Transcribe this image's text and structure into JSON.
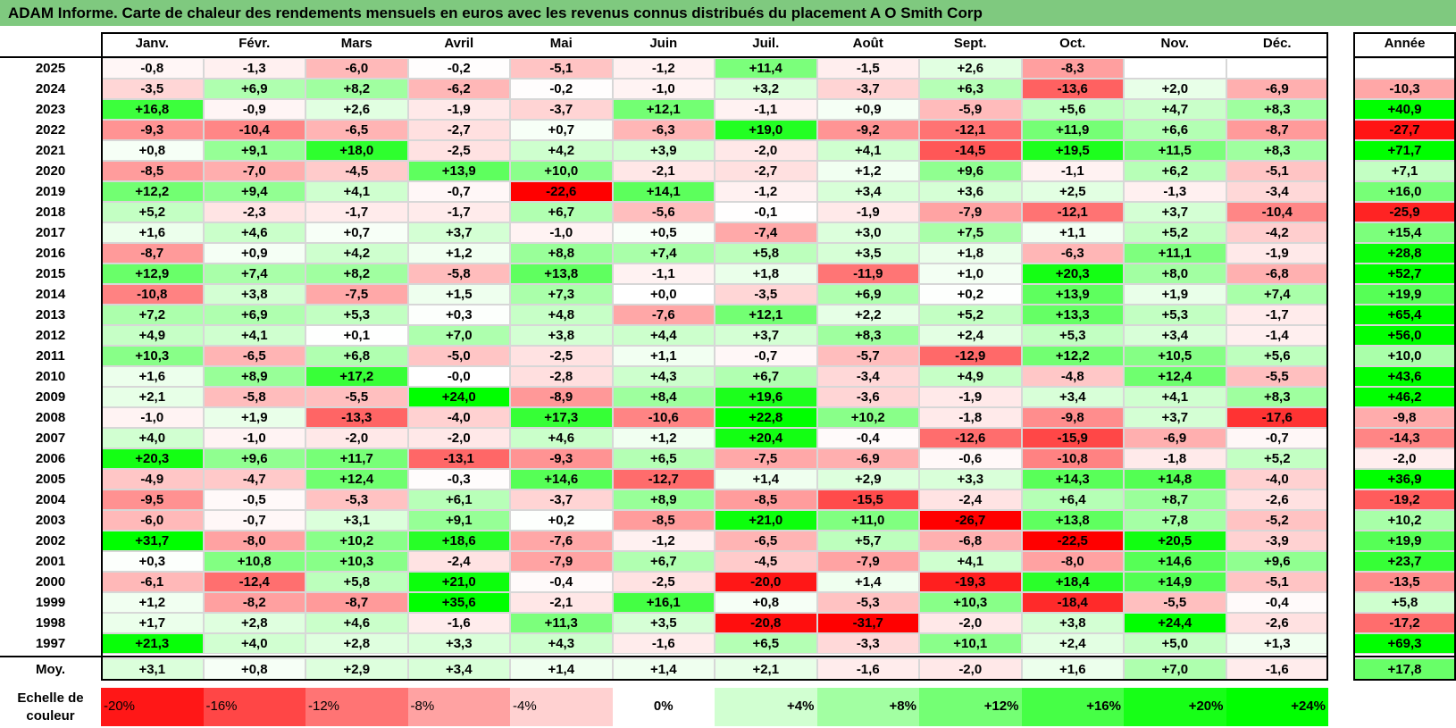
{
  "title": "ADAM Informe. Carte de chaleur des rendements mensuels en euros avec les revenus connus distribués du placement A O Smith Corp",
  "chart_data": {
    "type": "heatmap",
    "months": [
      "Janv.",
      "Févr.",
      "Mars",
      "Avril",
      "Mai",
      "Juin",
      "Juil.",
      "Août",
      "Sept.",
      "Oct.",
      "Nov.",
      "Déc."
    ],
    "year_header": "Année",
    "avg_label": "Moy.",
    "rows": [
      {
        "year": "2025",
        "values": [
          "-0,8",
          "-1,3",
          "-6,0",
          "-0,2",
          "-5,1",
          "-1,2",
          "+11,4",
          "-1,5",
          "+2,6",
          "-8,3",
          "",
          ""
        ],
        "annual": ""
      },
      {
        "year": "2024",
        "values": [
          "-3,5",
          "+6,9",
          "+8,2",
          "-6,2",
          "-0,2",
          "-1,0",
          "+3,2",
          "-3,7",
          "+6,3",
          "-13,6",
          "+2,0",
          "-6,9"
        ],
        "annual": "-10,3"
      },
      {
        "year": "2023",
        "values": [
          "+16,8",
          "-0,9",
          "+2,6",
          "-1,9",
          "-3,7",
          "+12,1",
          "-1,1",
          "+0,9",
          "-5,9",
          "+5,6",
          "+4,7",
          "+8,3"
        ],
        "annual": "+40,9"
      },
      {
        "year": "2022",
        "values": [
          "-9,3",
          "-10,4",
          "-6,5",
          "-2,7",
          "+0,7",
          "-6,3",
          "+19,0",
          "-9,2",
          "-12,1",
          "+11,9",
          "+6,6",
          "-8,7"
        ],
        "annual": "-27,7"
      },
      {
        "year": "2021",
        "values": [
          "+0,8",
          "+9,1",
          "+18,0",
          "-2,5",
          "+4,2",
          "+3,9",
          "-2,0",
          "+4,1",
          "-14,5",
          "+19,5",
          "+11,5",
          "+8,3"
        ],
        "annual": "+71,7"
      },
      {
        "year": "2020",
        "values": [
          "-8,5",
          "-7,0",
          "-4,5",
          "+13,9",
          "+10,0",
          "-2,1",
          "-2,7",
          "+1,2",
          "+9,6",
          "-1,1",
          "+6,2",
          "-5,1"
        ],
        "annual": "+7,1"
      },
      {
        "year": "2019",
        "values": [
          "+12,2",
          "+9,4",
          "+4,1",
          "-0,7",
          "-22,6",
          "+14,1",
          "-1,2",
          "+3,4",
          "+3,6",
          "+2,5",
          "-1,3",
          "-3,4"
        ],
        "annual": "+16,0"
      },
      {
        "year": "2018",
        "values": [
          "+5,2",
          "-2,3",
          "-1,7",
          "-1,7",
          "+6,7",
          "-5,6",
          "-0,1",
          "-1,9",
          "-7,9",
          "-12,1",
          "+3,7",
          "-10,4"
        ],
        "annual": "-25,9"
      },
      {
        "year": "2017",
        "values": [
          "+1,6",
          "+4,6",
          "+0,7",
          "+3,7",
          "-1,0",
          "+0,5",
          "-7,4",
          "+3,0",
          "+7,5",
          "+1,1",
          "+5,2",
          "-4,2"
        ],
        "annual": "+15,4"
      },
      {
        "year": "2016",
        "values": [
          "-8,7",
          "+0,9",
          "+4,2",
          "+1,2",
          "+8,8",
          "+7,4",
          "+5,8",
          "+3,5",
          "+1,8",
          "-6,3",
          "+11,1",
          "-1,9"
        ],
        "annual": "+28,8"
      },
      {
        "year": "2015",
        "values": [
          "+12,9",
          "+7,4",
          "+8,2",
          "-5,8",
          "+13,8",
          "-1,1",
          "+1,8",
          "-11,9",
          "+1,0",
          "+20,3",
          "+8,0",
          "-6,8"
        ],
        "annual": "+52,7"
      },
      {
        "year": "2014",
        "values": [
          "-10,8",
          "+3,8",
          "-7,5",
          "+1,5",
          "+7,3",
          "+0,0",
          "-3,5",
          "+6,9",
          "+0,2",
          "+13,9",
          "+1,9",
          "+7,4"
        ],
        "annual": "+19,9"
      },
      {
        "year": "2013",
        "values": [
          "+7,2",
          "+6,9",
          "+5,3",
          "+0,3",
          "+4,8",
          "-7,6",
          "+12,1",
          "+2,2",
          "+5,2",
          "+13,3",
          "+5,3",
          "-1,7"
        ],
        "annual": "+65,4"
      },
      {
        "year": "2012",
        "values": [
          "+4,9",
          "+4,1",
          "+0,1",
          "+7,0",
          "+3,8",
          "+4,4",
          "+3,7",
          "+8,3",
          "+2,4",
          "+5,3",
          "+3,4",
          "-1,4"
        ],
        "annual": "+56,0"
      },
      {
        "year": "2011",
        "values": [
          "+10,3",
          "-6,5",
          "+6,8",
          "-5,0",
          "-2,5",
          "+1,1",
          "-0,7",
          "-5,7",
          "-12,9",
          "+12,2",
          "+10,5",
          "+5,6"
        ],
        "annual": "+10,0"
      },
      {
        "year": "2010",
        "values": [
          "+1,6",
          "+8,9",
          "+17,2",
          "-0,0",
          "-2,8",
          "+4,3",
          "+6,7",
          "-3,4",
          "+4,9",
          "-4,8",
          "+12,4",
          "-5,5"
        ],
        "annual": "+43,6"
      },
      {
        "year": "2009",
        "values": [
          "+2,1",
          "-5,8",
          "-5,5",
          "+24,0",
          "-8,9",
          "+8,4",
          "+19,6",
          "-3,6",
          "-1,9",
          "+3,4",
          "+4,1",
          "+8,3"
        ],
        "annual": "+46,2"
      },
      {
        "year": "2008",
        "values": [
          "-1,0",
          "+1,9",
          "-13,3",
          "-4,0",
          "+17,3",
          "-10,6",
          "+22,8",
          "+10,2",
          "-1,8",
          "-9,8",
          "+3,7",
          "-17,6"
        ],
        "annual": "-9,8"
      },
      {
        "year": "2007",
        "values": [
          "+4,0",
          "-1,0",
          "-2,0",
          "-2,0",
          "+4,6",
          "+1,2",
          "+20,4",
          "-0,4",
          "-12,6",
          "-15,9",
          "-6,9",
          "-0,7"
        ],
        "annual": "-14,3"
      },
      {
        "year": "2006",
        "values": [
          "+20,3",
          "+9,6",
          "+11,7",
          "-13,1",
          "-9,3",
          "+6,5",
          "-7,5",
          "-6,9",
          "-0,6",
          "-10,8",
          "-1,8",
          "+5,2"
        ],
        "annual": "-2,0"
      },
      {
        "year": "2005",
        "values": [
          "-4,9",
          "-4,7",
          "+12,4",
          "-0,3",
          "+14,6",
          "-12,7",
          "+1,4",
          "+2,9",
          "+3,3",
          "+14,3",
          "+14,8",
          "-4,0"
        ],
        "annual": "+36,9"
      },
      {
        "year": "2004",
        "values": [
          "-9,5",
          "-0,5",
          "-5,3",
          "+6,1",
          "-3,7",
          "+8,9",
          "-8,5",
          "-15,5",
          "-2,4",
          "+6,4",
          "+8,7",
          "-2,6"
        ],
        "annual": "-19,2"
      },
      {
        "year": "2003",
        "values": [
          "-6,0",
          "-0,7",
          "+3,1",
          "+9,1",
          "+0,2",
          "-8,5",
          "+21,0",
          "+11,0",
          "-26,7",
          "+13,8",
          "+7,8",
          "-5,2"
        ],
        "annual": "+10,2"
      },
      {
        "year": "2002",
        "values": [
          "+31,7",
          "-8,0",
          "+10,2",
          "+18,6",
          "-7,6",
          "-1,2",
          "-6,5",
          "+5,7",
          "-6,8",
          "-22,5",
          "+20,5",
          "-3,9"
        ],
        "annual": "+19,9"
      },
      {
        "year": "2001",
        "values": [
          "+0,3",
          "+10,8",
          "+10,3",
          "-2,4",
          "-7,9",
          "+6,7",
          "-4,5",
          "-7,9",
          "+4,1",
          "-8,0",
          "+14,6",
          "+9,6"
        ],
        "annual": "+23,7"
      },
      {
        "year": "2000",
        "values": [
          "-6,1",
          "-12,4",
          "+5,8",
          "+21,0",
          "-0,4",
          "-2,5",
          "-20,0",
          "+1,4",
          "-19,3",
          "+18,4",
          "+14,9",
          "-5,1"
        ],
        "annual": "-13,5"
      },
      {
        "year": "1999",
        "values": [
          "+1,2",
          "-8,2",
          "-8,7",
          "+35,6",
          "-2,1",
          "+16,1",
          "+0,8",
          "-5,3",
          "+10,3",
          "-18,4",
          "-5,5",
          "-0,4"
        ],
        "annual": "+5,8"
      },
      {
        "year": "1998",
        "values": [
          "+1,7",
          "+2,8",
          "+4,6",
          "-1,6",
          "+11,3",
          "+3,5",
          "-20,8",
          "-31,7",
          "-2,0",
          "+3,8",
          "+24,4",
          "-2,6"
        ],
        "annual": "-17,2"
      },
      {
        "year": "1997",
        "values": [
          "+21,3",
          "+4,0",
          "+2,8",
          "+3,3",
          "+4,3",
          "-1,6",
          "+6,5",
          "-3,3",
          "+10,1",
          "+2,4",
          "+5,0",
          "+1,3"
        ],
        "annual": "+69,3"
      }
    ],
    "averages": [
      "+3,1",
      "+0,8",
      "+2,9",
      "+3,4",
      "+1,4",
      "+1,4",
      "+2,1",
      "-1,6",
      "-2,0",
      "+1,6",
      "+7,0",
      "-1,6"
    ],
    "average_annual": "+17,8",
    "scale_label": "Echelle de couleur",
    "scale": [
      {
        "label": "-20%",
        "value": -20
      },
      {
        "label": "-16%",
        "value": -16
      },
      {
        "label": "-12%",
        "value": -12
      },
      {
        "label": "-8%",
        "value": -8
      },
      {
        "label": "-4%",
        "value": -4
      },
      {
        "label": "0%",
        "value": 0
      },
      {
        "label": "+4%",
        "value": 4
      },
      {
        "label": "+8%",
        "value": 8
      },
      {
        "label": "+12%",
        "value": 12
      },
      {
        "label": "+16%",
        "value": 16
      },
      {
        "label": "+20%",
        "value": 20
      },
      {
        "label": "+24%",
        "value": 24
      }
    ],
    "colors": {
      "negative": "#ff0000",
      "positive": "#00ff00",
      "neutral": "#ffffff",
      "title_bg": "#7fc97f"
    }
  }
}
